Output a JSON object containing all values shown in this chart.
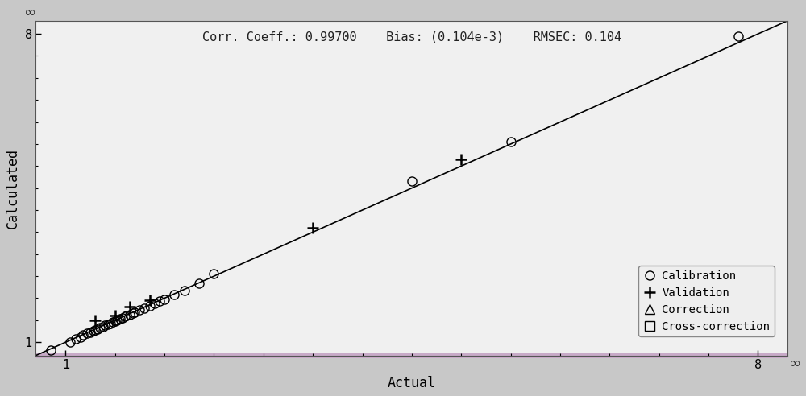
{
  "title_text": "Corr. Coeff.: 0.99700    Bias: (0.104e-3)    RMSEC: 0.104",
  "xlabel": "Actual",
  "ylabel": "Calculated",
  "xlim": [
    0.7,
    8.3
  ],
  "ylim": [
    0.7,
    8.3
  ],
  "fig_bg_color": "#c8c8c8",
  "plot_bg_color": "#f0f0f0",
  "line_color": "#000000",
  "calibration_x": [
    0.85,
    1.05,
    1.1,
    1.15,
    1.18,
    1.22,
    1.25,
    1.28,
    1.3,
    1.32,
    1.35,
    1.38,
    1.4,
    1.43,
    1.45,
    1.48,
    1.5,
    1.52,
    1.55,
    1.58,
    1.6,
    1.62,
    1.65,
    1.68,
    1.7,
    1.75,
    1.8,
    1.85,
    1.9,
    1.95,
    2.0,
    2.1,
    2.2,
    2.35,
    2.5,
    4.5,
    5.5,
    7.8
  ],
  "calibration_y": [
    0.82,
    1.0,
    1.08,
    1.12,
    1.16,
    1.2,
    1.23,
    1.26,
    1.28,
    1.3,
    1.33,
    1.36,
    1.38,
    1.41,
    1.43,
    1.46,
    1.48,
    1.5,
    1.53,
    1.56,
    1.58,
    1.6,
    1.63,
    1.66,
    1.68,
    1.73,
    1.78,
    1.83,
    1.88,
    1.93,
    1.98,
    2.08,
    2.18,
    2.33,
    2.55,
    4.65,
    5.55,
    7.95
  ],
  "validation_x": [
    1.3,
    1.5,
    1.65,
    1.85,
    3.5,
    5.0
  ],
  "validation_y": [
    1.5,
    1.6,
    1.8,
    1.95,
    3.6,
    5.15
  ],
  "marker_color": "#000000",
  "marker_size_circle": 8,
  "marker_size_plus": 10,
  "legend_items": [
    "Calibration",
    "Validation",
    "Correction",
    "Cross-correction"
  ],
  "font_family": "monospace",
  "annotation_fontsize": 11,
  "axis_fontsize": 12,
  "tick_fontsize": 11,
  "bottom_bar_color": "#c8aac8",
  "bottom_bar_linewidth": 5
}
